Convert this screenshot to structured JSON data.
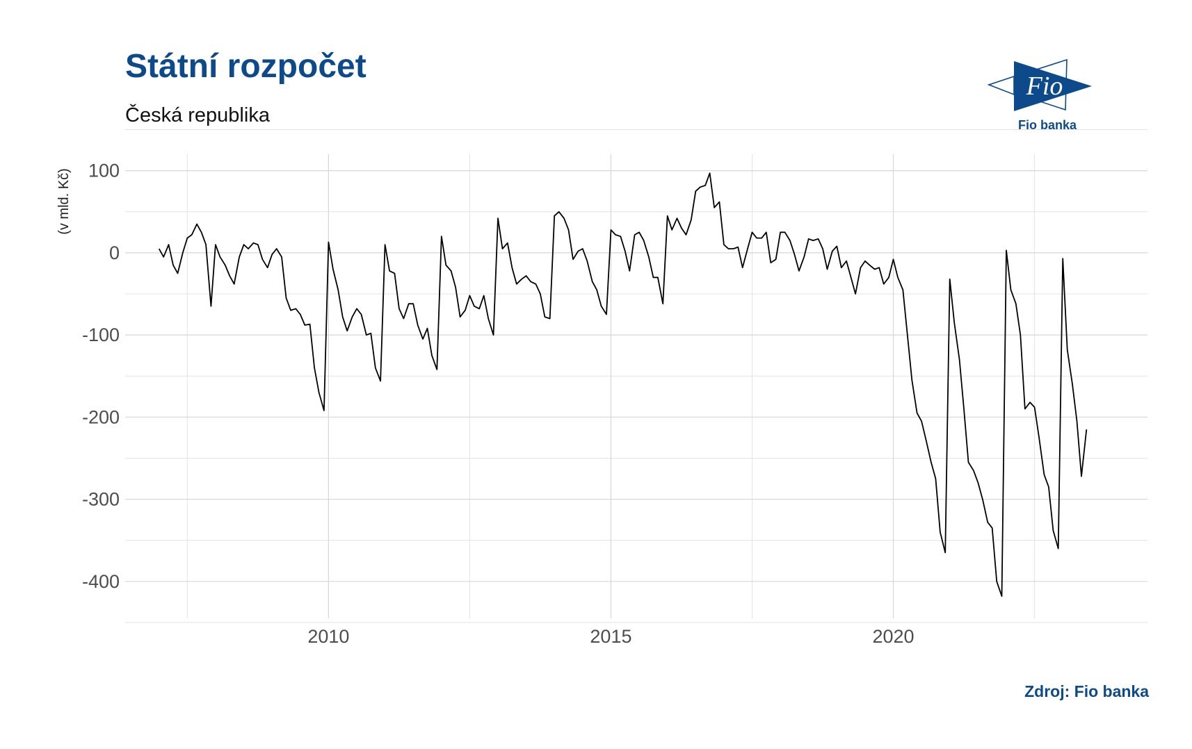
{
  "header": {
    "title": "Státní rozpočet",
    "subtitle": "Česká republika"
  },
  "footer": {
    "source": "Zdroj: Fio banka"
  },
  "logo": {
    "mark_text": "Fio",
    "name": "Fio banka",
    "color": "#0d4a8c"
  },
  "chart_data": {
    "type": "line",
    "title": "Státní rozpočet",
    "subtitle": "Česká republika",
    "xlabel": "",
    "ylabel": "(v mld. Kč)",
    "xlim": [
      2006.4,
      2024.5
    ],
    "ylim": [
      -445,
      120
    ],
    "x_ticks": [
      2010,
      2015,
      2020
    ],
    "y_ticks": [
      100,
      0,
      -100,
      -200,
      -300,
      -400
    ],
    "grid": true,
    "legend": "none",
    "line_color": "#000000",
    "series": [
      {
        "values": [
          [
            2007.0,
            5
          ],
          [
            2007.08,
            -5
          ],
          [
            2007.17,
            10
          ],
          [
            2007.25,
            -15
          ],
          [
            2007.33,
            -25
          ],
          [
            2007.42,
            0
          ],
          [
            2007.5,
            18
          ],
          [
            2007.58,
            22
          ],
          [
            2007.67,
            35
          ],
          [
            2007.75,
            25
          ],
          [
            2007.83,
            10
          ],
          [
            2007.92,
            -65
          ],
          [
            2008.0,
            10
          ],
          [
            2008.08,
            -5
          ],
          [
            2008.17,
            -15
          ],
          [
            2008.25,
            -28
          ],
          [
            2008.33,
            -38
          ],
          [
            2008.42,
            -5
          ],
          [
            2008.5,
            10
          ],
          [
            2008.58,
            5
          ],
          [
            2008.67,
            12
          ],
          [
            2008.75,
            10
          ],
          [
            2008.83,
            -8
          ],
          [
            2008.92,
            -18
          ],
          [
            2009.0,
            -2
          ],
          [
            2009.08,
            5
          ],
          [
            2009.17,
            -5
          ],
          [
            2009.25,
            -55
          ],
          [
            2009.33,
            -70
          ],
          [
            2009.42,
            -68
          ],
          [
            2009.5,
            -75
          ],
          [
            2009.58,
            -88
          ],
          [
            2009.67,
            -87
          ],
          [
            2009.75,
            -140
          ],
          [
            2009.83,
            -170
          ],
          [
            2009.92,
            -192
          ],
          [
            2010.0,
            13
          ],
          [
            2010.08,
            -20
          ],
          [
            2010.17,
            -45
          ],
          [
            2010.25,
            -78
          ],
          [
            2010.33,
            -95
          ],
          [
            2010.42,
            -78
          ],
          [
            2010.5,
            -68
          ],
          [
            2010.58,
            -75
          ],
          [
            2010.67,
            -100
          ],
          [
            2010.75,
            -98
          ],
          [
            2010.83,
            -140
          ],
          [
            2010.92,
            -156
          ],
          [
            2011.0,
            10
          ],
          [
            2011.08,
            -22
          ],
          [
            2011.17,
            -25
          ],
          [
            2011.25,
            -68
          ],
          [
            2011.33,
            -80
          ],
          [
            2011.42,
            -62
          ],
          [
            2011.5,
            -62
          ],
          [
            2011.58,
            -88
          ],
          [
            2011.67,
            -105
          ],
          [
            2011.75,
            -92
          ],
          [
            2011.83,
            -125
          ],
          [
            2011.92,
            -142
          ],
          [
            2012.0,
            20
          ],
          [
            2012.08,
            -15
          ],
          [
            2012.17,
            -22
          ],
          [
            2012.25,
            -42
          ],
          [
            2012.33,
            -78
          ],
          [
            2012.42,
            -70
          ],
          [
            2012.5,
            -52
          ],
          [
            2012.58,
            -65
          ],
          [
            2012.67,
            -68
          ],
          [
            2012.75,
            -52
          ],
          [
            2012.83,
            -80
          ],
          [
            2012.92,
            -100
          ],
          [
            2013.0,
            42
          ],
          [
            2013.08,
            5
          ],
          [
            2013.17,
            12
          ],
          [
            2013.25,
            -18
          ],
          [
            2013.33,
            -38
          ],
          [
            2013.42,
            -32
          ],
          [
            2013.5,
            -28
          ],
          [
            2013.58,
            -35
          ],
          [
            2013.67,
            -38
          ],
          [
            2013.75,
            -50
          ],
          [
            2013.83,
            -78
          ],
          [
            2013.92,
            -80
          ],
          [
            2014.0,
            45
          ],
          [
            2014.08,
            50
          ],
          [
            2014.17,
            42
          ],
          [
            2014.25,
            28
          ],
          [
            2014.33,
            -8
          ],
          [
            2014.42,
            2
          ],
          [
            2014.5,
            5
          ],
          [
            2014.58,
            -10
          ],
          [
            2014.67,
            -35
          ],
          [
            2014.75,
            -45
          ],
          [
            2014.83,
            -65
          ],
          [
            2014.92,
            -75
          ],
          [
            2015.0,
            28
          ],
          [
            2015.08,
            22
          ],
          [
            2015.17,
            20
          ],
          [
            2015.25,
            2
          ],
          [
            2015.33,
            -22
          ],
          [
            2015.42,
            22
          ],
          [
            2015.5,
            25
          ],
          [
            2015.58,
            15
          ],
          [
            2015.67,
            -5
          ],
          [
            2015.75,
            -30
          ],
          [
            2015.83,
            -30
          ],
          [
            2015.92,
            -62
          ],
          [
            2016.0,
            45
          ],
          [
            2016.08,
            28
          ],
          [
            2016.17,
            42
          ],
          [
            2016.25,
            30
          ],
          [
            2016.33,
            22
          ],
          [
            2016.42,
            40
          ],
          [
            2016.5,
            75
          ],
          [
            2016.58,
            80
          ],
          [
            2016.67,
            82
          ],
          [
            2016.75,
            97
          ],
          [
            2016.83,
            55
          ],
          [
            2016.92,
            62
          ],
          [
            2017.0,
            10
          ],
          [
            2017.08,
            5
          ],
          [
            2017.17,
            5
          ],
          [
            2017.25,
            7
          ],
          [
            2017.33,
            -18
          ],
          [
            2017.42,
            5
          ],
          [
            2017.5,
            25
          ],
          [
            2017.58,
            18
          ],
          [
            2017.67,
            18
          ],
          [
            2017.75,
            25
          ],
          [
            2017.83,
            -12
          ],
          [
            2017.92,
            -8
          ],
          [
            2018.0,
            25
          ],
          [
            2018.08,
            25
          ],
          [
            2018.17,
            15
          ],
          [
            2018.25,
            -2
          ],
          [
            2018.33,
            -22
          ],
          [
            2018.42,
            -5
          ],
          [
            2018.5,
            17
          ],
          [
            2018.58,
            15
          ],
          [
            2018.67,
            17
          ],
          [
            2018.75,
            5
          ],
          [
            2018.83,
            -20
          ],
          [
            2018.92,
            2
          ],
          [
            2019.0,
            8
          ],
          [
            2019.08,
            -18
          ],
          [
            2019.17,
            -10
          ],
          [
            2019.25,
            -30
          ],
          [
            2019.33,
            -50
          ],
          [
            2019.42,
            -18
          ],
          [
            2019.5,
            -10
          ],
          [
            2019.58,
            -15
          ],
          [
            2019.67,
            -20
          ],
          [
            2019.75,
            -18
          ],
          [
            2019.83,
            -38
          ],
          [
            2019.92,
            -30
          ],
          [
            2020.0,
            -8
          ],
          [
            2020.08,
            -30
          ],
          [
            2020.17,
            -45
          ],
          [
            2020.25,
            -100
          ],
          [
            2020.33,
            -155
          ],
          [
            2020.42,
            -195
          ],
          [
            2020.5,
            -205
          ],
          [
            2020.58,
            -228
          ],
          [
            2020.67,
            -255
          ],
          [
            2020.75,
            -275
          ],
          [
            2020.83,
            -340
          ],
          [
            2020.92,
            -365
          ],
          [
            2021.0,
            -32
          ],
          [
            2021.08,
            -85
          ],
          [
            2021.17,
            -130
          ],
          [
            2021.25,
            -190
          ],
          [
            2021.33,
            -255
          ],
          [
            2021.42,
            -265
          ],
          [
            2021.5,
            -280
          ],
          [
            2021.58,
            -300
          ],
          [
            2021.67,
            -328
          ],
          [
            2021.75,
            -335
          ],
          [
            2021.83,
            -400
          ],
          [
            2021.92,
            -418
          ],
          [
            2022.0,
            3
          ],
          [
            2022.08,
            -45
          ],
          [
            2022.17,
            -62
          ],
          [
            2022.25,
            -100
          ],
          [
            2022.33,
            -190
          ],
          [
            2022.42,
            -182
          ],
          [
            2022.5,
            -188
          ],
          [
            2022.58,
            -225
          ],
          [
            2022.67,
            -270
          ],
          [
            2022.75,
            -285
          ],
          [
            2022.83,
            -338
          ],
          [
            2022.92,
            -360
          ],
          [
            2023.0,
            -7
          ],
          [
            2023.08,
            -118
          ],
          [
            2023.17,
            -160
          ],
          [
            2023.25,
            -205
          ],
          [
            2023.33,
            -272
          ],
          [
            2023.42,
            -215
          ]
        ]
      }
    ]
  }
}
